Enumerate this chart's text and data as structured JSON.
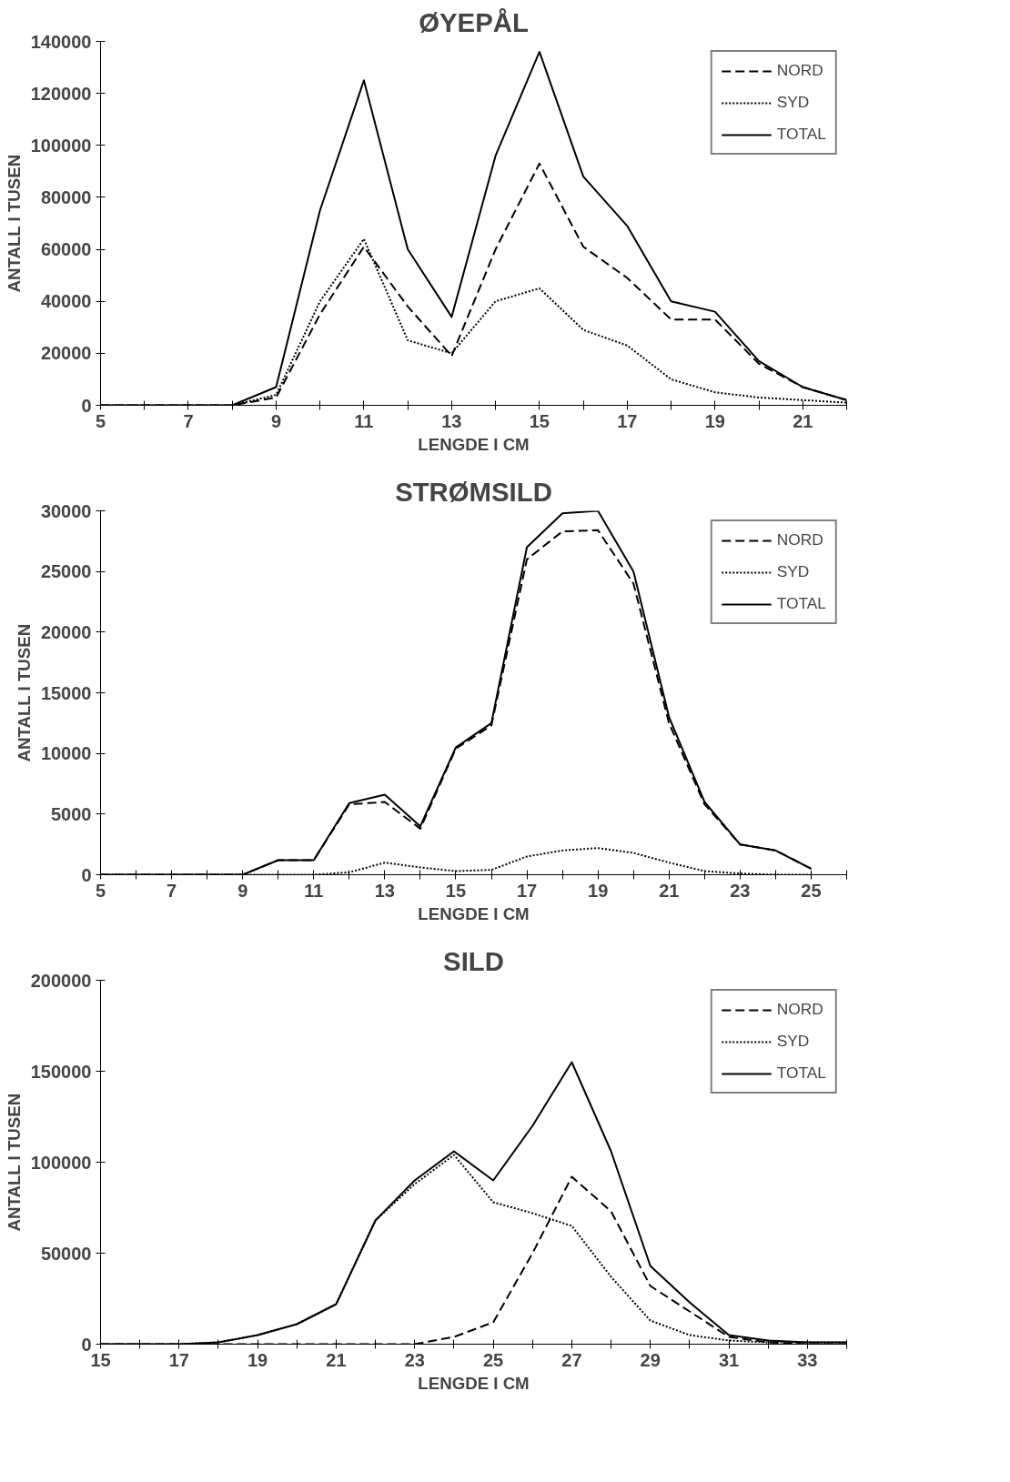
{
  "chart_data": [
    {
      "type": "line",
      "title": "ØYEPÅL",
      "xlabel": "LENGDE I CM",
      "ylabel": "ANTALL I TUSEN",
      "legend": "top right",
      "grid": false,
      "marker": "none",
      "xlim": [
        5,
        22
      ],
      "ylim": [
        0,
        140000
      ],
      "xticks": [
        5,
        {
          "value": 6,
          "label": null
        },
        7,
        {
          "value": 8,
          "label": null
        },
        9,
        {
          "value": 10,
          "label": null
        },
        11,
        {
          "value": 12,
          "label": null
        },
        13,
        {
          "value": 14,
          "label": null
        },
        15,
        {
          "value": 16,
          "label": null
        },
        17,
        {
          "value": 18,
          "label": null
        },
        19,
        {
          "value": 20,
          "label": null
        },
        21,
        {
          "value": 22,
          "label": null
        }
      ],
      "yticks": [
        0,
        20000,
        40000,
        60000,
        80000,
        100000,
        120000,
        140000
      ],
      "x": [
        5,
        6,
        7,
        8,
        9,
        10,
        11,
        12,
        13,
        14,
        15,
        16,
        17,
        18,
        19,
        20,
        21,
        22
      ],
      "series": [
        {
          "name": "NORD",
          "color": "#000000",
          "line_style": "dashed",
          "values": [
            0,
            0,
            0,
            0,
            3000,
            35000,
            61000,
            38000,
            19000,
            60000,
            93000,
            61000,
            49000,
            33000,
            33000,
            16000,
            7000,
            2000
          ]
        },
        {
          "name": "SYD",
          "color": "#000000",
          "line_style": "dotted",
          "values": [
            0,
            0,
            0,
            0,
            4000,
            40000,
            64000,
            25000,
            20000,
            40000,
            45000,
            29000,
            23000,
            10000,
            5000,
            3000,
            2000,
            1000
          ]
        },
        {
          "name": "TOTAL",
          "color": "#000000",
          "line_style": "solid",
          "values": [
            0,
            0,
            0,
            0,
            7000,
            75000,
            125000,
            60000,
            34000,
            96000,
            136000,
            88000,
            69000,
            40000,
            36000,
            17000,
            7000,
            2000
          ]
        }
      ]
    },
    {
      "type": "line",
      "title": "STRØMSILD",
      "xlabel": "LENGDE I CM",
      "ylabel": "ANTALL I TUSEN",
      "legend": "top right",
      "grid": false,
      "marker": "none",
      "xlim": [
        5,
        26
      ],
      "ylim": [
        0,
        30000
      ],
      "xticks": [
        5,
        {
          "value": 6,
          "label": null
        },
        7,
        {
          "value": 8,
          "label": null
        },
        9,
        {
          "value": 10,
          "label": null
        },
        11,
        {
          "value": 12,
          "label": null
        },
        13,
        {
          "value": 14,
          "label": null
        },
        15,
        {
          "value": 16,
          "label": null
        },
        17,
        {
          "value": 18,
          "label": null
        },
        19,
        {
          "value": 20,
          "label": null
        },
        21,
        {
          "value": 22,
          "label": null
        },
        23,
        {
          "value": 24,
          "label": null
        },
        25,
        {
          "value": 26,
          "label": null
        }
      ],
      "yticks": [
        0,
        5000,
        10000,
        15000,
        20000,
        25000,
        30000
      ],
      "x": [
        5,
        6,
        7,
        8,
        9,
        10,
        11,
        12,
        13,
        14,
        15,
        16,
        17,
        18,
        19,
        20,
        21,
        22,
        23,
        24,
        25
      ],
      "series": [
        {
          "name": "NORD",
          "color": "#000000",
          "line_style": "dashed",
          "values": [
            0,
            0,
            0,
            0,
            0,
            1200,
            1200,
            5800,
            6000,
            3800,
            10400,
            12300,
            26000,
            28300,
            28400,
            24000,
            12500,
            5800,
            2500,
            2000,
            500
          ]
        },
        {
          "name": "SYD",
          "color": "#000000",
          "line_style": "dotted",
          "values": [
            0,
            0,
            0,
            0,
            0,
            0,
            0,
            200,
            1000,
            600,
            300,
            400,
            1500,
            2000,
            2200,
            1800,
            1000,
            300,
            100,
            0,
            0
          ]
        },
        {
          "name": "TOTAL",
          "color": "#000000",
          "line_style": "solid",
          "values": [
            0,
            0,
            0,
            0,
            0,
            1200,
            1200,
            5900,
            6600,
            4000,
            10500,
            12500,
            27000,
            29800,
            30000,
            25000,
            13000,
            6000,
            2500,
            2000,
            500
          ]
        }
      ]
    },
    {
      "type": "line",
      "title": "SILD",
      "xlabel": "LENGDE I CM",
      "ylabel": "ANTALL I TUSEN",
      "legend": "top right",
      "grid": false,
      "marker": "none",
      "xlim": [
        15,
        34
      ],
      "ylim": [
        0,
        200000
      ],
      "xticks": [
        15,
        {
          "value": 16,
          "label": null
        },
        17,
        {
          "value": 18,
          "label": null
        },
        19,
        {
          "value": 20,
          "label": null
        },
        21,
        {
          "value": 22,
          "label": null
        },
        23,
        {
          "value": 24,
          "label": null
        },
        25,
        {
          "value": 26,
          "label": null
        },
        27,
        {
          "value": 28,
          "label": null
        },
        29,
        {
          "value": 30,
          "label": null
        },
        31,
        {
          "value": 32,
          "label": null
        },
        33,
        {
          "value": 34,
          "label": null
        }
      ],
      "yticks": [
        0,
        50000,
        100000,
        150000,
        200000
      ],
      "x": [
        15,
        16,
        17,
        18,
        19,
        20,
        21,
        22,
        23,
        24,
        25,
        26,
        27,
        28,
        29,
        30,
        31,
        32,
        33,
        34
      ],
      "series": [
        {
          "name": "NORD",
          "color": "#000000",
          "line_style": "dashed",
          "values": [
            0,
            0,
            0,
            0,
            0,
            0,
            0,
            0,
            0,
            4000,
            12000,
            50000,
            92000,
            73000,
            32000,
            18000,
            4000,
            1000,
            0,
            0
          ]
        },
        {
          "name": "SYD",
          "color": "#000000",
          "line_style": "dotted",
          "values": [
            0,
            0,
            0,
            1000,
            5000,
            11000,
            22000,
            68000,
            88000,
            104000,
            78000,
            72000,
            65000,
            37000,
            13000,
            5000,
            2000,
            1000,
            1000,
            1000
          ]
        },
        {
          "name": "TOTAL",
          "color": "#000000",
          "line_style": "solid",
          "values": [
            0,
            0,
            0,
            1000,
            5000,
            11000,
            22000,
            68000,
            90000,
            106000,
            90000,
            120000,
            155000,
            106000,
            43000,
            23000,
            5000,
            2000,
            1000,
            1000
          ]
        }
      ]
    }
  ]
}
